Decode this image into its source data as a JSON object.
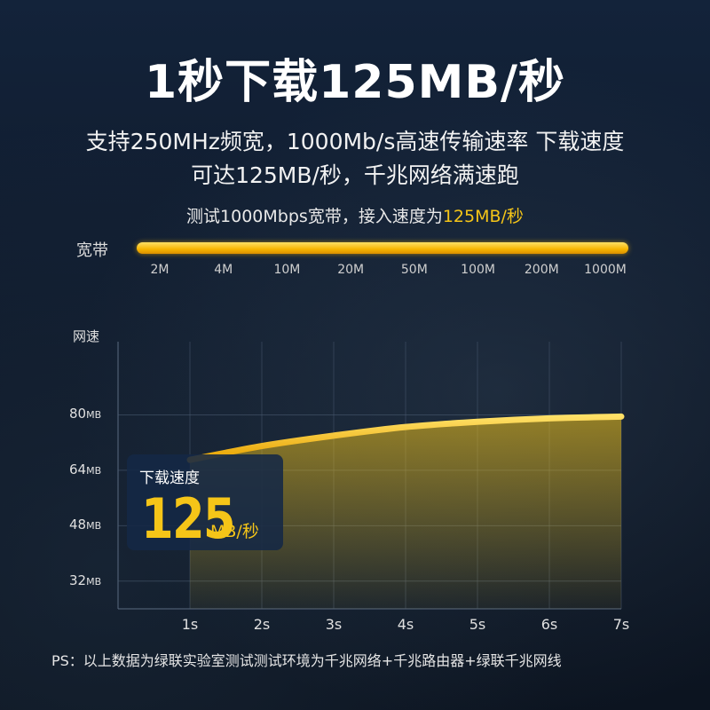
{
  "header": {
    "title": "1秒下载125MB/秒",
    "subtitle_line1": "支持250MHz频宽，1000Mb/s高速传输速率 下载速度",
    "subtitle_line2": "可达125MB/秒，千兆网络满速跑",
    "test_text_prefix": "测试1000Mbps宽带，接入速度为",
    "test_text_highlight": "125MB/秒"
  },
  "bandwidth": {
    "label": "宽带",
    "ticks": [
      "2M",
      "4M",
      "10M",
      "20M",
      "50M",
      "100M",
      "200M",
      "1000M"
    ]
  },
  "speed_card": {
    "label": "下载速度",
    "value": "125",
    "unit": "MB/秒"
  },
  "footnote": "PS：以上数据为绿联实验室测试测试环境为千兆网络+千兆路由器+绿联千兆网线",
  "colors": {
    "accent": "#f5c518",
    "background": "#0f1a2a"
  },
  "chart_data": {
    "type": "area",
    "ylabel": "网速",
    "y_ticks": [
      {
        "num": "80",
        "unit": "MB"
      },
      {
        "num": "64",
        "unit": "MB"
      },
      {
        "num": "48",
        "unit": "MB"
      },
      {
        "num": "32",
        "unit": "MB"
      }
    ],
    "ylim": [
      24,
      96
    ],
    "x": [
      "1s",
      "2s",
      "3s",
      "4s",
      "5s",
      "6s",
      "7s"
    ],
    "xlim": [
      0,
      7
    ],
    "series": [
      {
        "values": [
          67,
          71,
          74,
          76.5,
          78,
          79,
          79.5
        ]
      }
    ],
    "grid": true
  }
}
